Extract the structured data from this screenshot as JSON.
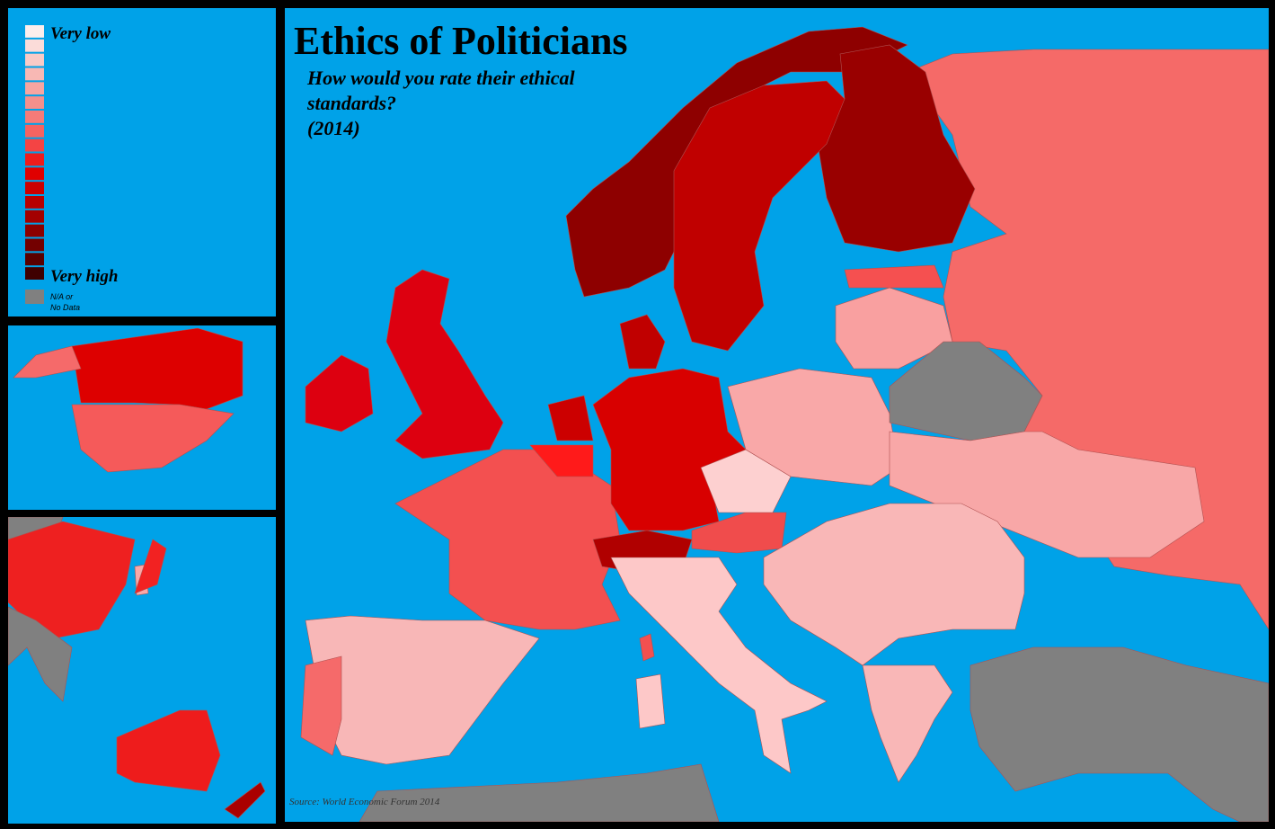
{
  "title": "Ethics of Politicians",
  "subtitle": [
    "How would you rate their ethical",
    "standards?",
    "(2014)"
  ],
  "legend": {
    "low_label": "Very low",
    "high_label": "Very high",
    "na_label": [
      "N/A or",
      "No Data"
    ],
    "colors": [
      "#fdeeec",
      "#fbdcd9",
      "#f9cac6",
      "#f8b8b4",
      "#f6a5a1",
      "#f4908c",
      "#f57b78",
      "#f56361",
      "#f44444",
      "#ee1c1c",
      "#e00000",
      "#cc0000",
      "#b80000",
      "#a30000",
      "#8c0000",
      "#730000",
      "#5a0000",
      "#3f0000"
    ],
    "na_color": "#808080"
  },
  "source": "Source: World Economic Forum 2014"
}
